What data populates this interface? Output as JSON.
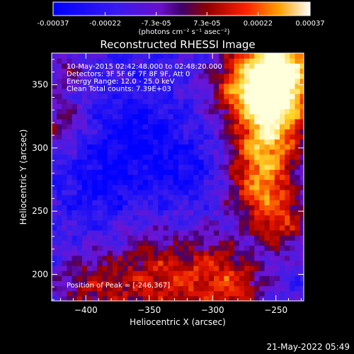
{
  "chart_data": {
    "type": "heatmap",
    "title": "Reconstructed RHESSI Image",
    "xlabel": "Heliocentric X (arcsec)",
    "ylabel": "Heliocentric Y (arcsec)",
    "xlim": [
      -427,
      -228
    ],
    "ylim": [
      179,
      375
    ],
    "xticks": [
      -400,
      -350,
      -300,
      -250
    ],
    "yticks": [
      200,
      250,
      300,
      350
    ],
    "colorbar": {
      "min": -0.00037,
      "max": 0.00037,
      "tick_values": [
        -0.00037,
        -0.00022,
        -7.3e-05,
        7.3e-05,
        0.00022,
        0.00037
      ],
      "tick_labels": [
        "-0.00037",
        "-0.00022",
        "-7.3e-05",
        "7.3e-05",
        "0.00022",
        "0.00037"
      ],
      "unit_label": "(photons cm⁻² s⁻¹ asec⁻²)"
    },
    "annotations": [
      "10-May-2015 02:42:48.000 to 02:48:20.000",
      "Detectors: 3F 5F 6F 7F 8F 9F, Att 0",
      "Energy Range: 12.0 - 25.0 keV",
      "Clean     Total counts: 7.39E+03"
    ],
    "peak_label": "Position of Peak = [-246,367]",
    "peak": [
      -246,
      367
    ],
    "grid": false,
    "colors": {
      "background": "#000000",
      "negative_low": "#0000ff",
      "near_zero": "#7000d0",
      "positive_mid": "#d00000",
      "positive_high": "#ff8000",
      "peak": "#ffffd0"
    }
  },
  "footer": {
    "timestamp": "21-May-2022 05:49"
  }
}
